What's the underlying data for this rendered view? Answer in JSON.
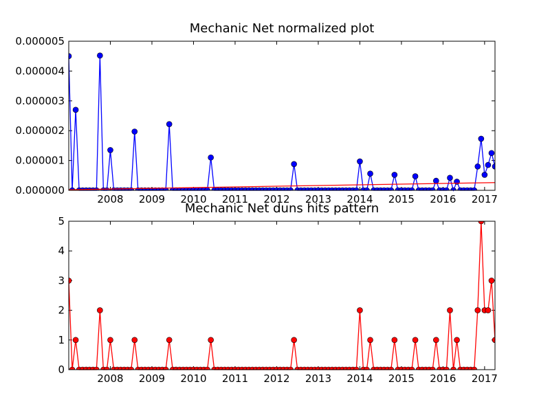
{
  "chart_data": [
    {
      "type": "line",
      "title": "Mechanic Net normalized plot",
      "x": [
        2007,
        2007.0833,
        2007.1667,
        2007.25,
        2007.3333,
        2007.4167,
        2007.5,
        2007.5833,
        2007.6667,
        2007.75,
        2007.8333,
        2007.9167,
        2008,
        2008.0833,
        2008.1667,
        2008.25,
        2008.3333,
        2008.4167,
        2008.5,
        2008.5833,
        2008.6667,
        2008.75,
        2008.8333,
        2008.9167,
        2009,
        2009.0833,
        2009.1667,
        2009.25,
        2009.3333,
        2009.4167,
        2009.5,
        2009.5833,
        2009.6667,
        2009.75,
        2009.8333,
        2009.9167,
        2010,
        2010.0833,
        2010.1667,
        2010.25,
        2010.3333,
        2010.4167,
        2010.5,
        2010.5833,
        2010.6667,
        2010.75,
        2010.8333,
        2010.9167,
        2011,
        2011.0833,
        2011.1667,
        2011.25,
        2011.3333,
        2011.4167,
        2011.5,
        2011.5833,
        2011.6667,
        2011.75,
        2011.8333,
        2011.9167,
        2012,
        2012.0833,
        2012.1667,
        2012.25,
        2012.3333,
        2012.4167,
        2012.5,
        2012.5833,
        2012.6667,
        2012.75,
        2012.8333,
        2012.9167,
        2013,
        2013.0833,
        2013.1667,
        2013.25,
        2013.3333,
        2013.4167,
        2013.5,
        2013.5833,
        2013.6667,
        2013.75,
        2013.8333,
        2013.9167,
        2014,
        2014.0833,
        2014.1667,
        2014.25,
        2014.3333,
        2014.4167,
        2014.5,
        2014.5833,
        2014.6667,
        2014.75,
        2014.8333,
        2014.9167,
        2015,
        2015.0833,
        2015.1667,
        2015.25,
        2015.3333,
        2015.4167,
        2015.5,
        2015.5833,
        2015.6667,
        2015.75,
        2015.8333,
        2015.9167,
        2016,
        2016.0833,
        2016.1667,
        2016.25,
        2016.3333,
        2016.4167,
        2016.5,
        2016.5833,
        2016.6667,
        2016.75,
        2016.8333,
        2016.9167,
        2017,
        2017.0833,
        2017.1667,
        2017.25
      ],
      "series": [
        {
          "color": "#0000ff",
          "marker": true,
          "values": [
            4.5e-06,
            0,
            2.7e-06,
            0,
            0,
            0,
            0,
            0,
            0,
            4.52e-06,
            0,
            0,
            1.35e-06,
            0,
            0,
            0,
            0,
            0,
            0,
            1.97e-06,
            0,
            0,
            0,
            0,
            0,
            0,
            0,
            0,
            0,
            2.22e-06,
            0,
            0,
            0,
            0,
            0,
            0,
            0,
            0,
            0,
            0,
            0,
            1.1e-06,
            0,
            0,
            0,
            0,
            0,
            0,
            0,
            0,
            0,
            0,
            0,
            0,
            0,
            0,
            0,
            0,
            0,
            0,
            0,
            0,
            0,
            0,
            0,
            8.8e-07,
            0,
            0,
            0,
            0,
            0,
            0,
            0,
            0,
            0,
            0,
            0,
            0,
            0,
            0,
            0,
            0,
            0,
            0,
            9.7e-07,
            0,
            0,
            5.6e-07,
            0,
            0,
            0,
            0,
            0,
            0,
            5.2e-07,
            0,
            0,
            0,
            0,
            0,
            4.7e-07,
            0,
            0,
            0,
            0,
            0,
            3.2e-07,
            0,
            0,
            0,
            4.2e-07,
            0,
            2.9e-07,
            0,
            0,
            0,
            0,
            0,
            8e-07,
            1.73e-06,
            5.2e-07,
            8.5e-07,
            1.25e-06,
            8e-07
          ]
        },
        {
          "color": "#ff0000",
          "marker": false,
          "x": [
            2007,
            2017.25
          ],
          "values": [
            2e-08,
            2.6e-07
          ]
        }
      ],
      "xlim": [
        2007,
        2017.25
      ],
      "xticks": [
        2008,
        2009,
        2010,
        2011,
        2012,
        2013,
        2014,
        2015,
        2016,
        2017
      ],
      "ylim": [
        0,
        5e-06
      ],
      "yticks": [
        {
          "value": 0,
          "label": "0.000000"
        },
        {
          "value": 1e-06,
          "label": "0.000001"
        },
        {
          "value": 2e-06,
          "label": "0.000002"
        },
        {
          "value": 3e-06,
          "label": "0.000003"
        },
        {
          "value": 4e-06,
          "label": "0.000004"
        },
        {
          "value": 5e-06,
          "label": "0.000005"
        }
      ]
    },
    {
      "type": "line",
      "title": "Mechanic Net duns hits pattern",
      "x": [
        2007,
        2007.0833,
        2007.1667,
        2007.25,
        2007.3333,
        2007.4167,
        2007.5,
        2007.5833,
        2007.6667,
        2007.75,
        2007.8333,
        2007.9167,
        2008,
        2008.0833,
        2008.1667,
        2008.25,
        2008.3333,
        2008.4167,
        2008.5,
        2008.5833,
        2008.6667,
        2008.75,
        2008.8333,
        2008.9167,
        2009,
        2009.0833,
        2009.1667,
        2009.25,
        2009.3333,
        2009.4167,
        2009.5,
        2009.5833,
        2009.6667,
        2009.75,
        2009.8333,
        2009.9167,
        2010,
        2010.0833,
        2010.1667,
        2010.25,
        2010.3333,
        2010.4167,
        2010.5,
        2010.5833,
        2010.6667,
        2010.75,
        2010.8333,
        2010.9167,
        2011,
        2011.0833,
        2011.1667,
        2011.25,
        2011.3333,
        2011.4167,
        2011.5,
        2011.5833,
        2011.6667,
        2011.75,
        2011.8333,
        2011.9167,
        2012,
        2012.0833,
        2012.1667,
        2012.25,
        2012.3333,
        2012.4167,
        2012.5,
        2012.5833,
        2012.6667,
        2012.75,
        2012.8333,
        2012.9167,
        2013,
        2013.0833,
        2013.1667,
        2013.25,
        2013.3333,
        2013.4167,
        2013.5,
        2013.5833,
        2013.6667,
        2013.75,
        2013.8333,
        2013.9167,
        2014,
        2014.0833,
        2014.1667,
        2014.25,
        2014.3333,
        2014.4167,
        2014.5,
        2014.5833,
        2014.6667,
        2014.75,
        2014.8333,
        2014.9167,
        2015,
        2015.0833,
        2015.1667,
        2015.25,
        2015.3333,
        2015.4167,
        2015.5,
        2015.5833,
        2015.6667,
        2015.75,
        2015.8333,
        2015.9167,
        2016,
        2016.0833,
        2016.1667,
        2016.25,
        2016.3333,
        2016.4167,
        2016.5,
        2016.5833,
        2016.6667,
        2016.75,
        2016.8333,
        2016.9167,
        2017,
        2017.0833,
        2017.1667,
        2017.25
      ],
      "series": [
        {
          "color": "#ff0000",
          "marker": true,
          "values": [
            3,
            0,
            1,
            0,
            0,
            0,
            0,
            0,
            0,
            2,
            0,
            0,
            1,
            0,
            0,
            0,
            0,
            0,
            0,
            1,
            0,
            0,
            0,
            0,
            0,
            0,
            0,
            0,
            0,
            1,
            0,
            0,
            0,
            0,
            0,
            0,
            0,
            0,
            0,
            0,
            0,
            1,
            0,
            0,
            0,
            0,
            0,
            0,
            0,
            0,
            0,
            0,
            0,
            0,
            0,
            0,
            0,
            0,
            0,
            0,
            0,
            0,
            0,
            0,
            0,
            1,
            0,
            0,
            0,
            0,
            0,
            0,
            0,
            0,
            0,
            0,
            0,
            0,
            0,
            0,
            0,
            0,
            0,
            0,
            2,
            0,
            0,
            1,
            0,
            0,
            0,
            0,
            0,
            0,
            1,
            0,
            0,
            0,
            0,
            0,
            1,
            0,
            0,
            0,
            0,
            0,
            1,
            0,
            0,
            0,
            2,
            0,
            1,
            0,
            0,
            0,
            0,
            0,
            2,
            5,
            2,
            2,
            3,
            1
          ]
        }
      ],
      "xlim": [
        2007,
        2017.25
      ],
      "xticks": [
        2008,
        2009,
        2010,
        2011,
        2012,
        2013,
        2014,
        2015,
        2016,
        2017
      ],
      "ylim": [
        0,
        5
      ],
      "yticks": [
        0,
        1,
        2,
        3,
        4,
        5
      ]
    }
  ]
}
